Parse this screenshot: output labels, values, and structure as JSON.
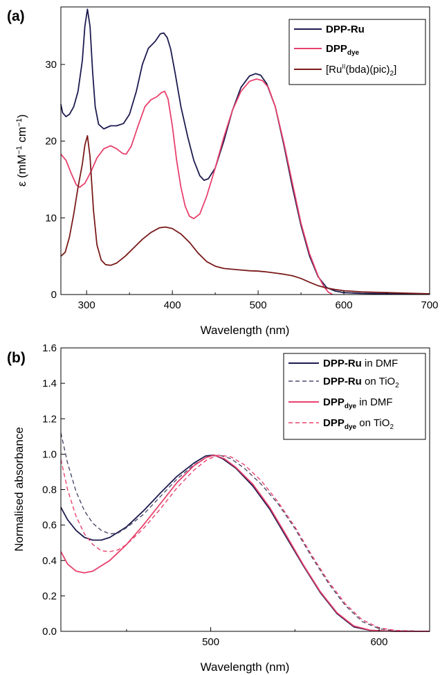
{
  "chart_data": [
    {
      "panel": "(a)",
      "type": "line",
      "xlabel": "Wavelength (nm)",
      "ylabel": "ε (mM⁻¹ cm⁻¹)",
      "xlim": [
        270,
        700
      ],
      "ylim": [
        0,
        37.5
      ],
      "xticks": [
        300,
        400,
        500,
        600,
        700
      ],
      "yticks": [
        0,
        10,
        20,
        30
      ],
      "legend_position": "top-right",
      "series": [
        {
          "name": "DPP-Ru",
          "color": "#1c1a4e",
          "dash": "solid",
          "points": [
            [
              270,
              24.8
            ],
            [
              272,
              23.7
            ],
            [
              276,
              23.2
            ],
            [
              280,
              23.5
            ],
            [
              285,
              24.5
            ],
            [
              290,
              26.5
            ],
            [
              295,
              30.5
            ],
            [
              298,
              35
            ],
            [
              301,
              37.2
            ],
            [
              304,
              35
            ],
            [
              307,
              29
            ],
            [
              310,
              24.5
            ],
            [
              314,
              22.2
            ],
            [
              320,
              21.6
            ],
            [
              328,
              22
            ],
            [
              335,
              22
            ],
            [
              343,
              22.3
            ],
            [
              350,
              23.5
            ],
            [
              358,
              26.5
            ],
            [
              365,
              30
            ],
            [
              372,
              32.1
            ],
            [
              380,
              33
            ],
            [
              386,
              34
            ],
            [
              390,
              34.1
            ],
            [
              394,
              33.5
            ],
            [
              398,
              32
            ],
            [
              403,
              29
            ],
            [
              410,
              24.5
            ],
            [
              418,
              20.5
            ],
            [
              425,
              17.5
            ],
            [
              432,
              15.5
            ],
            [
              437,
              14.9
            ],
            [
              442,
              15.1
            ],
            [
              450,
              16.5
            ],
            [
              460,
              20
            ],
            [
              470,
              24
            ],
            [
              480,
              27
            ],
            [
              490,
              28.5
            ],
            [
              497,
              28.8
            ],
            [
              503,
              28.6
            ],
            [
              510,
              27.5
            ],
            [
              520,
              24.5
            ],
            [
              530,
              19.5
            ],
            [
              540,
              14
            ],
            [
              550,
              9
            ],
            [
              560,
              5
            ],
            [
              570,
              2.3
            ],
            [
              580,
              0.9
            ],
            [
              590,
              0.45
            ],
            [
              600,
              0.25
            ],
            [
              620,
              0.15
            ],
            [
              650,
              0.1
            ],
            [
              680,
              0.06
            ],
            [
              700,
              0.05
            ]
          ]
        },
        {
          "name": "DPPdye",
          "color": "#e8406c",
          "dash": "solid",
          "points": [
            [
              270,
              18.3
            ],
            [
              276,
              17.5
            ],
            [
              282,
              15.8
            ],
            [
              288,
              14.3
            ],
            [
              292,
              14
            ],
            [
              298,
              14.5
            ],
            [
              305,
              16
            ],
            [
              312,
              17.8
            ],
            [
              320,
              19
            ],
            [
              328,
              19.4
            ],
            [
              335,
              19
            ],
            [
              342,
              18.4
            ],
            [
              346,
              18.3
            ],
            [
              352,
              19.3
            ],
            [
              360,
              22
            ],
            [
              368,
              24.5
            ],
            [
              375,
              25.4
            ],
            [
              382,
              25.8
            ],
            [
              387,
              26.3
            ],
            [
              391,
              26.5
            ],
            [
              395,
              25.5
            ],
            [
              400,
              22
            ],
            [
              405,
              17.5
            ],
            [
              410,
              14
            ],
            [
              415,
              11.5
            ],
            [
              420,
              10.2
            ],
            [
              425,
              9.9
            ],
            [
              432,
              10.5
            ],
            [
              440,
              12.8
            ],
            [
              450,
              16.5
            ],
            [
              460,
              20.5
            ],
            [
              470,
              24
            ],
            [
              480,
              26.5
            ],
            [
              490,
              27.8
            ],
            [
              498,
              28.1
            ],
            [
              505,
              27.9
            ],
            [
              512,
              27
            ],
            [
              520,
              24.5
            ],
            [
              530,
              19.8
            ],
            [
              540,
              14.5
            ],
            [
              550,
              9.3
            ],
            [
              560,
              5.3
            ],
            [
              570,
              2.4
            ],
            [
              577,
              1
            ],
            [
              582,
              0.3
            ],
            [
              587,
              0
            ]
          ]
        },
        {
          "name": "[RuII(bda)(pic)2]",
          "color": "#7a1a1a",
          "dash": "solid",
          "points": [
            [
              270,
              5
            ],
            [
              275,
              5.5
            ],
            [
              280,
              7.5
            ],
            [
              285,
              10.5
            ],
            [
              290,
              14
            ],
            [
              295,
              17
            ],
            [
              298,
              19.5
            ],
            [
              301,
              20.7
            ],
            [
              304,
              18
            ],
            [
              308,
              11
            ],
            [
              312,
              6.5
            ],
            [
              317,
              4.5
            ],
            [
              322,
              3.9
            ],
            [
              328,
              3.8
            ],
            [
              335,
              4.1
            ],
            [
              345,
              5
            ],
            [
              355,
              6.1
            ],
            [
              365,
              7.2
            ],
            [
              375,
              8.1
            ],
            [
              385,
              8.7
            ],
            [
              392,
              8.8
            ],
            [
              400,
              8.6
            ],
            [
              410,
              7.9
            ],
            [
              420,
              6.8
            ],
            [
              430,
              5.4
            ],
            [
              440,
              4.3
            ],
            [
              450,
              3.7
            ],
            [
              460,
              3.4
            ],
            [
              470,
              3.3
            ],
            [
              480,
              3.2
            ],
            [
              490,
              3.1
            ],
            [
              500,
              3.05
            ],
            [
              510,
              2.95
            ],
            [
              520,
              2.8
            ],
            [
              530,
              2.65
            ],
            [
              540,
              2.45
            ],
            [
              550,
              2.1
            ],
            [
              560,
              1.6
            ],
            [
              570,
              1.15
            ],
            [
              580,
              0.85
            ],
            [
              590,
              0.65
            ],
            [
              600,
              0.5
            ],
            [
              620,
              0.35
            ],
            [
              650,
              0.25
            ],
            [
              680,
              0.15
            ],
            [
              700,
              0.1
            ]
          ]
        }
      ]
    },
    {
      "panel": "(b)",
      "type": "line",
      "xlabel": "Wavelength (nm)",
      "ylabel": "Normalised absorbance",
      "xlim": [
        411,
        630
      ],
      "ylim": [
        0,
        1.6
      ],
      "xticks": [
        500,
        600
      ],
      "yticks": [
        0.0,
        0.2,
        0.4,
        0.6,
        0.8,
        1.0,
        1.2,
        1.4,
        1.6
      ],
      "legend_position": "top-right",
      "series": [
        {
          "name": "DPP-Ru in DMF",
          "color": "#1c1a4e",
          "dash": "solid",
          "points": [
            [
              411,
              0.7
            ],
            [
              415,
              0.63
            ],
            [
              420,
              0.57
            ],
            [
              425,
              0.53
            ],
            [
              430,
              0.515
            ],
            [
              435,
              0.515
            ],
            [
              440,
              0.53
            ],
            [
              450,
              0.59
            ],
            [
              460,
              0.68
            ],
            [
              470,
              0.78
            ],
            [
              480,
              0.875
            ],
            [
              490,
              0.95
            ],
            [
              497,
              0.99
            ],
            [
              502,
              0.995
            ],
            [
              507,
              0.975
            ],
            [
              515,
              0.92
            ],
            [
              525,
              0.82
            ],
            [
              535,
              0.69
            ],
            [
              545,
              0.53
            ],
            [
              555,
              0.37
            ],
            [
              565,
              0.22
            ],
            [
              575,
              0.1
            ],
            [
              585,
              0.025
            ],
            [
              595,
              0.005
            ],
            [
              610,
              0
            ],
            [
              630,
              0
            ]
          ]
        },
        {
          "name": "DPP-Ru on TiO2",
          "color": "#4a4a6a",
          "dash": "dashed",
          "points": [
            [
              411,
              1.12
            ],
            [
              415,
              0.95
            ],
            [
              420,
              0.79
            ],
            [
              425,
              0.68
            ],
            [
              430,
              0.61
            ],
            [
              435,
              0.57
            ],
            [
              440,
              0.55
            ],
            [
              445,
              0.555
            ],
            [
              450,
              0.585
            ],
            [
              460,
              0.66
            ],
            [
              470,
              0.76
            ],
            [
              480,
              0.86
            ],
            [
              490,
              0.94
            ],
            [
              498,
              0.985
            ],
            [
              505,
              0.995
            ],
            [
              512,
              0.975
            ],
            [
              520,
              0.92
            ],
            [
              530,
              0.83
            ],
            [
              540,
              0.72
            ],
            [
              550,
              0.58
            ],
            [
              560,
              0.42
            ],
            [
              570,
              0.27
            ],
            [
              580,
              0.145
            ],
            [
              590,
              0.055
            ],
            [
              600,
              0.015
            ],
            [
              610,
              0.003
            ],
            [
              630,
              0
            ]
          ]
        },
        {
          "name": "DPPdye in DMF",
          "color": "#e8406c",
          "dash": "solid",
          "points": [
            [
              411,
              0.45
            ],
            [
              415,
              0.38
            ],
            [
              420,
              0.34
            ],
            [
              425,
              0.33
            ],
            [
              430,
              0.34
            ],
            [
              440,
              0.4
            ],
            [
              450,
              0.49
            ],
            [
              460,
              0.6
            ],
            [
              470,
              0.72
            ],
            [
              480,
              0.84
            ],
            [
              490,
              0.935
            ],
            [
              497,
              0.98
            ],
            [
              502,
              0.995
            ],
            [
              508,
              0.975
            ],
            [
              515,
              0.925
            ],
            [
              525,
              0.83
            ],
            [
              535,
              0.7
            ],
            [
              545,
              0.54
            ],
            [
              555,
              0.375
            ],
            [
              565,
              0.225
            ],
            [
              575,
              0.105
            ],
            [
              585,
              0.03
            ],
            [
              595,
              0.006
            ],
            [
              610,
              0
            ],
            [
              630,
              0
            ]
          ]
        },
        {
          "name": "DPPdye on TiO2",
          "color": "#e8406c",
          "dash": "dashed",
          "points": [
            [
              411,
              0.97
            ],
            [
              415,
              0.8
            ],
            [
              420,
              0.65
            ],
            [
              425,
              0.55
            ],
            [
              430,
              0.49
            ],
            [
              435,
              0.455
            ],
            [
              440,
              0.45
            ],
            [
              445,
              0.46
            ],
            [
              450,
              0.49
            ],
            [
              460,
              0.58
            ],
            [
              470,
              0.69
            ],
            [
              480,
              0.81
            ],
            [
              490,
              0.91
            ],
            [
              498,
              0.97
            ],
            [
              505,
              0.995
            ],
            [
              512,
              0.985
            ],
            [
              520,
              0.94
            ],
            [
              530,
              0.85
            ],
            [
              540,
              0.73
            ],
            [
              550,
              0.59
            ],
            [
              560,
              0.43
            ],
            [
              570,
              0.28
            ],
            [
              580,
              0.155
            ],
            [
              590,
              0.065
            ],
            [
              600,
              0.02
            ],
            [
              610,
              0.005
            ],
            [
              630,
              0
            ]
          ]
        }
      ]
    }
  ],
  "legend_a": {
    "dppru": "DPP-Ru",
    "dppdye_base": "DPP",
    "dppdye_sub": "dye",
    "ru_a": "[Ru",
    "ru_sup": "II",
    "ru_b": "(bda)(pic)",
    "ru_sub": "2",
    "ru_c": "]"
  },
  "legend_b": {
    "dppru": "DPP-Ru",
    "in_dmf": " in DMF",
    "on_tio": " on TiO",
    "tio_sub": "2",
    "dpp": "DPP",
    "dye_sub": "dye"
  },
  "axis_a": {
    "ylabel_a": "ε (mM",
    "ylabel_sup1": "−1",
    "ylabel_b": " cm",
    "ylabel_sup2": "−1",
    "ylabel_c": ")"
  }
}
